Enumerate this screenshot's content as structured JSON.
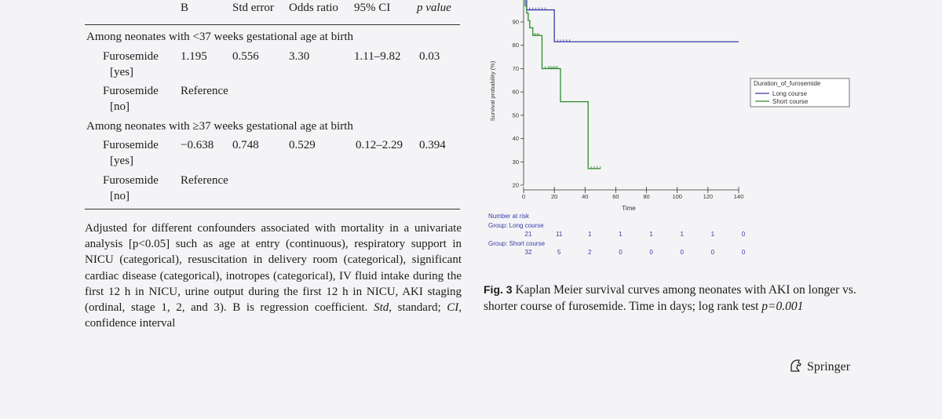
{
  "table": {
    "headers": {
      "b": "B",
      "std": "Std error",
      "or": "Odds ratio",
      "ci": "95% CI",
      "p": "p value"
    },
    "group1_title": "Among neonates with <37 weeks gestational age at birth",
    "group1_row1": {
      "name": "Furosemide",
      "sub": "[yes]",
      "b": "1.195",
      "std": "0.556",
      "or": "3.30",
      "ci": "1.11–9.82",
      "p": "0.03"
    },
    "group1_row2": {
      "name": "Furosemide",
      "sub": "[no]",
      "ref": "Reference"
    },
    "group2_title": "Among neonates with ≥37 weeks gestational age at birth",
    "group2_row1": {
      "name": "Furosemide",
      "sub": "[yes]",
      "b": "−0.638",
      "std": "0.748",
      "or": "0.529",
      "ci": "0.12–2.29",
      "p": "0.394"
    },
    "group2_row2": {
      "name": "Furosemide",
      "sub": "[no]",
      "ref": "Reference"
    },
    "footnote_main": "Adjusted for different confounders associated with mortality in a univariate analysis [p<0.05] such as age at entry (continuous), respiratory support in NICU (categorical), resuscitation in delivery room (categorical), significant cardiac disease (categorical), inotropes (categorical), IV fluid intake during the first 12 h in NICU, urine output during the first 12 h in NICU, AKI staging (ordinal, stage 1, 2, and 3). B is regression coefficient.",
    "footnote_std": "Std",
    "footnote_std_def": ", standard;",
    "footnote_ci": "CI",
    "footnote_ci_def": ", confidence interval"
  },
  "chart_data": {
    "type": "line",
    "title": "",
    "xlabel": "Time",
    "ylabel": "Survival probability (%)",
    "xlim": [
      0,
      140
    ],
    "ylim": [
      20,
      100
    ],
    "xticks": [
      0,
      20,
      40,
      60,
      80,
      100,
      120,
      140
    ],
    "yticks": [
      20,
      30,
      40,
      50,
      60,
      70,
      80,
      90
    ],
    "legend": {
      "title": "Duration_of_furosemide",
      "position": "right"
    },
    "series": [
      {
        "name": "Long course",
        "color": "#3a3aa8",
        "x": [
          0,
          2,
          2,
          20,
          20,
          140
        ],
        "y": [
          100,
          100,
          95.2,
          95.2,
          81.5,
          81.5
        ],
        "censor_x": [
          4,
          6,
          8,
          10,
          12,
          14,
          22,
          24,
          26,
          28,
          30
        ]
      },
      {
        "name": "Short course",
        "color": "#2e8a2e",
        "x": [
          0,
          1,
          1,
          2,
          2,
          3,
          3,
          4,
          4,
          6,
          6,
          12,
          12,
          24,
          24,
          42,
          42,
          50
        ],
        "y": [
          100,
          100,
          96.9,
          96.9,
          93.8,
          93.8,
          90.6,
          90.6,
          87.5,
          87.5,
          84.2,
          84.2,
          70.0,
          70.0,
          55.8,
          55.8,
          27.1,
          27.1
        ],
        "censor_x": [
          7,
          8,
          9,
          10,
          14,
          16,
          17,
          18,
          19,
          20,
          21,
          22,
          44,
          46,
          48,
          50
        ]
      }
    ],
    "risk_table": {
      "title": "Number at risk",
      "long_label": "Group: Long course",
      "long": [
        "21",
        "11",
        "1",
        "1",
        "1",
        "1",
        "1",
        "0"
      ],
      "short_label": "Group: Short course",
      "short": [
        "32",
        "5",
        "2",
        "0",
        "0",
        "0",
        "0",
        "0"
      ]
    }
  },
  "caption": {
    "label": "Fig. 3",
    "text": "Kaplan Meier survival curves among neonates with AKI on longer vs. shorter course of furosemide. Time in days; log rank test",
    "pvalue": "p=0.001"
  },
  "publisher": "Springer"
}
